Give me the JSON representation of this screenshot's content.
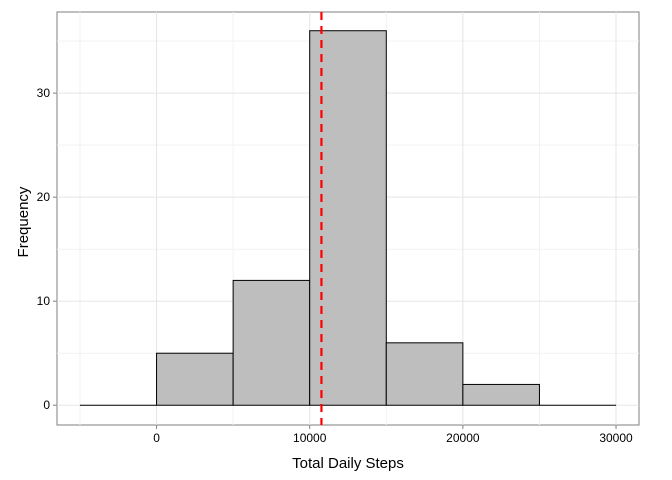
{
  "chart_data": {
    "type": "bar",
    "xlabel": "Total Daily Steps",
    "ylabel": "Frequency",
    "bins": [
      {
        "start": -5000,
        "end": 0,
        "count": 0
      },
      {
        "start": 0,
        "end": 5000,
        "count": 5
      },
      {
        "start": 5000,
        "end": 10000,
        "count": 12
      },
      {
        "start": 10000,
        "end": 15000,
        "count": 36
      },
      {
        "start": 15000,
        "end": 20000,
        "count": 6
      },
      {
        "start": 20000,
        "end": 25000,
        "count": 2
      },
      {
        "start": 25000,
        "end": 30000,
        "count": 0
      }
    ],
    "xlim": [
      -6500,
      31500
    ],
    "ylim": [
      -1.9,
      37.8
    ],
    "x_ticks": [
      "0",
      "10000",
      "20000",
      "30000"
    ],
    "y_ticks": [
      "0",
      "10",
      "20",
      "30"
    ],
    "reference_line": {
      "x": 10766,
      "color": "#ff0000",
      "style": "dashed"
    },
    "bar_fill": "#bebebe",
    "bar_outline": "#000000",
    "grid": true
  }
}
